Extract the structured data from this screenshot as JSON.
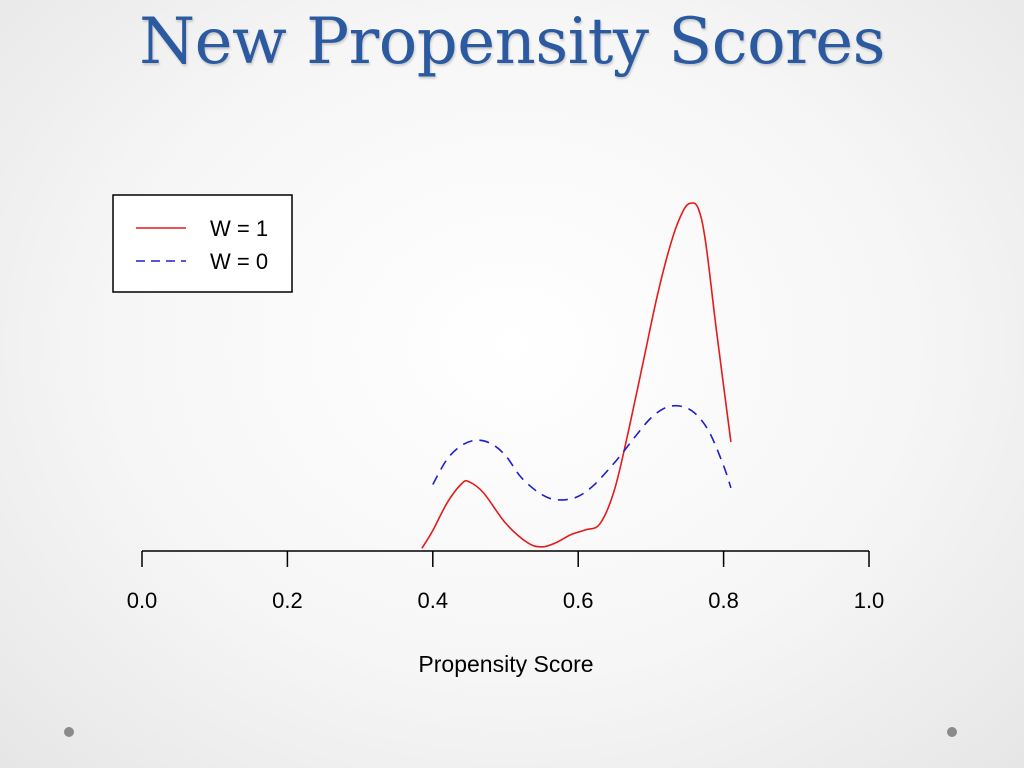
{
  "slide": {
    "title": "New Propensity Scores",
    "dots": [
      "left-dot",
      "right-dot"
    ]
  },
  "chart_data": {
    "type": "line",
    "title": "",
    "xlabel": "Propensity Score",
    "ylabel": "",
    "xlim": [
      0.0,
      1.0
    ],
    "ylim": [
      0.0,
      10.0
    ],
    "xticks": [
      "0.0",
      "0.2",
      "0.4",
      "0.6",
      "0.8",
      "1.0"
    ],
    "grid": false,
    "legend_position": "top-left",
    "series": [
      {
        "name": "W = 1",
        "color": "#e41a1c",
        "linestyle": "solid",
        "x": [
          0.385,
          0.4,
          0.42,
          0.44,
          0.45,
          0.47,
          0.5,
          0.53,
          0.55,
          0.57,
          0.59,
          0.61,
          0.63,
          0.65,
          0.67,
          0.69,
          0.71,
          0.73,
          0.745,
          0.755,
          0.765,
          0.775,
          0.79,
          0.81
        ],
        "y": [
          0.08,
          0.6,
          1.42,
          1.98,
          2.03,
          1.7,
          0.82,
          0.25,
          0.12,
          0.25,
          0.48,
          0.62,
          0.8,
          1.8,
          3.6,
          5.6,
          7.6,
          9.2,
          10.0,
          10.2,
          10.05,
          9.1,
          6.5,
          3.2
        ]
      },
      {
        "name": "W = 0",
        "color": "#1f1fcc",
        "linestyle": "dashed",
        "x": [
          0.4,
          0.42,
          0.44,
          0.46,
          0.48,
          0.5,
          0.52,
          0.54,
          0.56,
          0.58,
          0.6,
          0.62,
          0.64,
          0.66,
          0.68,
          0.7,
          0.72,
          0.74,
          0.76,
          0.78,
          0.8,
          0.81
        ],
        "y": [
          1.95,
          2.7,
          3.1,
          3.25,
          3.15,
          2.8,
          2.2,
          1.8,
          1.55,
          1.5,
          1.6,
          1.9,
          2.35,
          2.85,
          3.4,
          3.9,
          4.2,
          4.25,
          4.05,
          3.5,
          2.5,
          1.85
        ]
      }
    ]
  }
}
